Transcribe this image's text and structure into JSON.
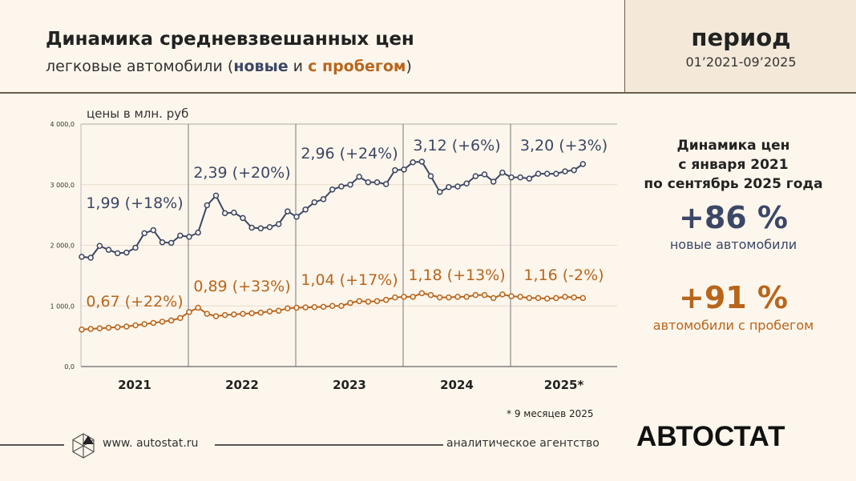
{
  "header": {
    "title": "Динамика средневзвешанных цен",
    "subtitle_prefix": "легковые автомобили (",
    "subtitle_new": "новые",
    "subtitle_mid": " и ",
    "subtitle_used": "с пробегом",
    "subtitle_suffix": ")",
    "period_label": "период",
    "period_range": "01’2021-09’2025"
  },
  "side": {
    "heading_lines": [
      "Динамика цен",
      "с января 2021",
      "по сентябрь 2025 года"
    ],
    "new_value": "+86 %",
    "new_label": "новые автомобили",
    "used_value": "+91 %",
    "used_label": "автомобили с пробегом"
  },
  "footnote": "* 9 месяцев 2025",
  "footer": {
    "website": "www. autostat.ru",
    "agency": "аналитическое агентство",
    "brand": "АВТОСТАТ"
  },
  "colors": {
    "new": "#3b4766",
    "used": "#b8651c",
    "background": "#fdf6ec"
  },
  "chart_data": {
    "type": "line",
    "ylabel": "цены в млн. руб",
    "ylim": [
      0,
      4000
    ],
    "yticks": [
      "0,0",
      "1 000,0",
      "2 000,0",
      "3 000,0",
      "4 000,0"
    ],
    "grid": true,
    "years": [
      "2021",
      "2022",
      "2023",
      "2024",
      "2025*"
    ],
    "months_per_year": [
      12,
      12,
      12,
      12,
      9
    ],
    "series": [
      {
        "key": "new",
        "values": [
          1810,
          1795,
          1990,
          1925,
          1870,
          1880,
          1960,
          2200,
          2250,
          2050,
          2040,
          2160,
          2140,
          2210,
          2660,
          2820,
          2530,
          2540,
          2450,
          2290,
          2280,
          2300,
          2350,
          2560,
          2470,
          2590,
          2710,
          2760,
          2920,
          2970,
          3000,
          3130,
          3040,
          3040,
          3010,
          3240,
          3250,
          3370,
          3380,
          3140,
          2880,
          2960,
          2970,
          3020,
          3140,
          3170,
          3050,
          3200,
          3120,
          3120,
          3100,
          3180,
          3180,
          3180,
          3220,
          3240,
          3340
        ],
        "annotations": [
          "1,99 (+18%)",
          "2,39 (+20%)",
          "2,96 (+24%)",
          "3,12 (+6%)",
          "3,20 (+3%)"
        ]
      },
      {
        "key": "used",
        "values": [
          610,
          620,
          630,
          640,
          650,
          660,
          680,
          700,
          720,
          740,
          760,
          800,
          900,
          970,
          870,
          830,
          850,
          860,
          870,
          880,
          890,
          910,
          920,
          960,
          970,
          975,
          980,
          985,
          1000,
          1000,
          1050,
          1080,
          1070,
          1080,
          1100,
          1140,
          1150,
          1150,
          1210,
          1180,
          1140,
          1140,
          1150,
          1150,
          1180,
          1180,
          1130,
          1190,
          1160,
          1150,
          1130,
          1130,
          1120,
          1130,
          1150,
          1140,
          1130
        ],
        "annotations": [
          "0,67 (+22%)",
          "0,89 (+33%)",
          "1,04 (+17%)",
          "1,18 (+13%)",
          "1,16 (-2%)"
        ]
      }
    ]
  }
}
